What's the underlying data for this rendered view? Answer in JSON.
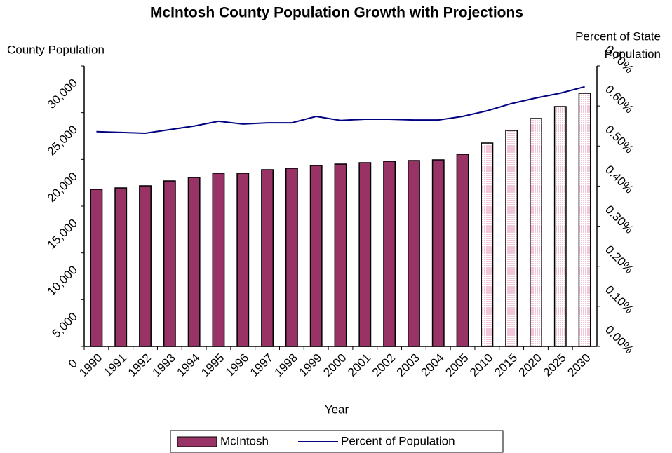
{
  "chart_data": {
    "type": "bar_line",
    "title": "McIntosh County Population Growth with Projections",
    "y_label": "County Population",
    "y2_label": [
      "Percent of State",
      "Population"
    ],
    "x_label": "Year",
    "categories": [
      "1990",
      "1991",
      "1992",
      "1993",
      "1994",
      "1995",
      "1996",
      "1997",
      "1998",
      "1999",
      "2000",
      "2001",
      "2002",
      "2003",
      "2004",
      "2005",
      "2010",
      "2015",
      "2020",
      "2025",
      "2030"
    ],
    "series": [
      {
        "name": "McIntosh",
        "type": "bar",
        "color": "#993366",
        "bar_colors": [
          "#993366",
          "#993366",
          "#993366",
          "#993366",
          "#993366",
          "#993366",
          "#993366",
          "#993366",
          "#993366",
          "#993366",
          "#993366",
          "#993366",
          "#993366",
          "#993366",
          "#993366",
          "#993366",
          "#f2c6d9",
          "#f2c6d9",
          "#f2c6d9",
          "#f2c6d9",
          "#f2c6d9"
        ],
        "values": [
          16800,
          16950,
          17175,
          17700,
          18075,
          18525,
          18525,
          18900,
          19050,
          19350,
          19500,
          19650,
          19800,
          19875,
          19950,
          20550,
          21750,
          23100,
          24375,
          25650,
          27075
        ]
      },
      {
        "name": "Percent of Population",
        "type": "line",
        "color": "#000080",
        "axis": "y2",
        "values": [
          0.536,
          0.534,
          0.532,
          0.541,
          0.55,
          0.562,
          0.555,
          0.558,
          0.558,
          0.574,
          0.564,
          0.567,
          0.567,
          0.565,
          0.565,
          0.574,
          0.588,
          0.606,
          0.62,
          0.632,
          0.648
        ]
      }
    ],
    "ylim": [
      0,
      30000
    ],
    "yticks": [
      0,
      {
        "value": 5000,
        "label": "5,000"
      },
      {
        "value": 10000,
        "label": "10,000"
      },
      {
        "value": 15000,
        "label": "15,000"
      },
      {
        "value": 20000,
        "label": "20,000"
      },
      {
        "value": 25000,
        "label": "25,000"
      },
      {
        "value": 30000,
        "label": "30,000"
      }
    ],
    "y2lim": [
      0,
      0.7
    ],
    "y2ticks": [
      {
        "value": 0,
        "label": "0.00%"
      },
      {
        "value": 0.1,
        "label": "0.10%"
      },
      {
        "value": 0.2,
        "label": "0.20%"
      },
      {
        "value": 0.3,
        "label": "0.30%"
      },
      {
        "value": 0.4,
        "label": "0.40%"
      },
      {
        "value": 0.5,
        "label": "0.50%"
      },
      {
        "value": 0.6,
        "label": "0.60%"
      },
      {
        "value": 0.7,
        "label": "0.70%"
      }
    ],
    "grid": false,
    "legend": "bottom"
  }
}
